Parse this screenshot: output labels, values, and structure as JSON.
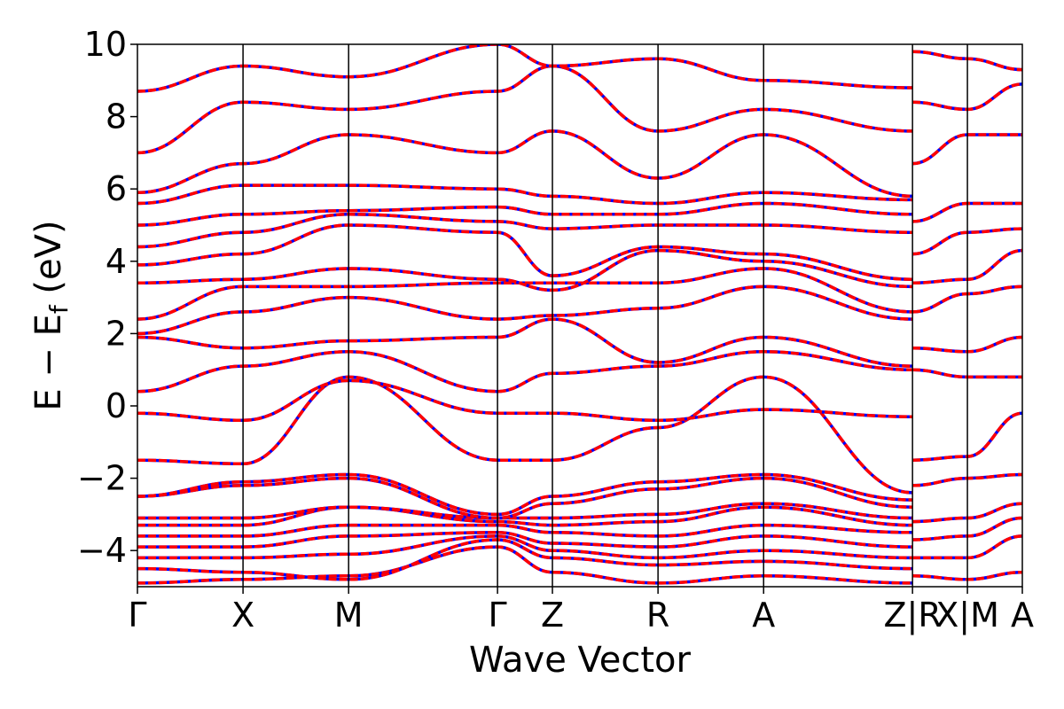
{
  "chart_data": {
    "type": "line",
    "xlabel": "Wave Vector",
    "ylabel": "E − E",
    "ylabel_sub": "f",
    "ylabel_unit": " (eV)",
    "ylim": [
      -5,
      10
    ],
    "yticks": [
      {
        "value": -4,
        "label": "−4"
      },
      {
        "value": -2,
        "label": "−2"
      },
      {
        "value": 0,
        "label": "0"
      },
      {
        "value": 2,
        "label": "2"
      },
      {
        "value": 4,
        "label": "4"
      },
      {
        "value": 6,
        "label": "6"
      },
      {
        "value": 8,
        "label": "8"
      },
      {
        "value": 10,
        "label": "10"
      }
    ],
    "kpath": [
      {
        "label": "Γ",
        "position": 0.0
      },
      {
        "label": "X",
        "position": 1.0
      },
      {
        "label": "M",
        "position": 2.0
      },
      {
        "label": "Γ",
        "position": 3.41
      },
      {
        "label": "Z",
        "position": 3.93
      },
      {
        "label": "R",
        "position": 4.93
      },
      {
        "label": "A",
        "position": 5.93
      },
      {
        "label": "Z|R",
        "position": 7.34
      },
      {
        "label": "X|M",
        "position": 7.86
      },
      {
        "label": "A",
        "position": 8.38
      }
    ],
    "grid": false,
    "legend": "none",
    "series_colors": {
      "overlay_line": "#ff0000",
      "base_line": "#0000ff"
    },
    "bands": [
      {
        "k": [
          0,
          1,
          2,
          3.41,
          3.93,
          4.93,
          5.93,
          7.34
        ],
        "E": [
          -4.9,
          -4.8,
          -4.7,
          -3.9,
          -4.6,
          -4.9,
          -4.7,
          -4.9
        ]
      },
      {
        "k": [
          0,
          1,
          2,
          3.41,
          3.93,
          4.93,
          5.93,
          7.34
        ],
        "E": [
          -4.5,
          -4.6,
          -4.8,
          -3.7,
          -4.2,
          -4.4,
          -4.3,
          -4.5
        ]
      },
      {
        "k": [
          0,
          1,
          2,
          3.41,
          3.93,
          4.93,
          5.93,
          7.34
        ],
        "E": [
          -4.2,
          -4.2,
          -4.1,
          -3.6,
          -4.0,
          -4.2,
          -4.0,
          -4.2
        ]
      },
      {
        "k": [
          0,
          1,
          2,
          3.41,
          3.93,
          4.93,
          5.93,
          7.34
        ],
        "E": [
          -3.9,
          -3.9,
          -3.6,
          -3.5,
          -3.8,
          -3.9,
          -3.6,
          -3.9
        ]
      },
      {
        "k": [
          0,
          1,
          2,
          3.41,
          3.93,
          4.93,
          5.93,
          7.34
        ],
        "E": [
          -3.6,
          -3.6,
          -3.3,
          -3.3,
          -3.5,
          -3.6,
          -3.3,
          -3.5
        ]
      },
      {
        "k": [
          0,
          1,
          2,
          3.41,
          3.93,
          4.93,
          5.93,
          7.34
        ],
        "E": [
          -3.3,
          -3.3,
          -2.8,
          -3.2,
          -3.3,
          -3.2,
          -2.8,
          -3.3
        ]
      },
      {
        "k": [
          0,
          1,
          2,
          3.41,
          3.93,
          4.93,
          5.93,
          7.34
        ],
        "E": [
          -3.1,
          -3.1,
          -2.8,
          -3.1,
          -3.1,
          -3.0,
          -2.7,
          -3.1
        ]
      },
      {
        "k": [
          0,
          1,
          2,
          3.41,
          3.93,
          4.93,
          5.93,
          7.34
        ],
        "E": [
          -2.5,
          -2.2,
          -2.0,
          -3.1,
          -2.7,
          -2.3,
          -2.0,
          -2.8
        ]
      },
      {
        "k": [
          0,
          1,
          2,
          3.41,
          3.93,
          4.93,
          5.93,
          7.34
        ],
        "E": [
          -2.5,
          -2.1,
          -1.9,
          -3.0,
          -2.5,
          -2.1,
          -1.9,
          -2.6
        ]
      },
      {
        "k": [
          0,
          1,
          2,
          3.41,
          3.93,
          4.93,
          5.93,
          7.34
        ],
        "E": [
          -1.5,
          -1.6,
          0.8,
          -1.5,
          -1.5,
          -0.6,
          0.8,
          -2.4
        ]
      },
      {
        "k": [
          0,
          1,
          2,
          3.41,
          3.93,
          4.93,
          5.93,
          7.34
        ],
        "E": [
          -0.2,
          -0.4,
          0.7,
          -0.2,
          -0.2,
          -0.4,
          -0.1,
          -0.3
        ]
      },
      {
        "k": [
          0,
          1,
          2,
          3.41,
          3.93,
          4.93,
          5.93,
          7.34
        ],
        "E": [
          0.4,
          1.1,
          1.5,
          0.4,
          0.9,
          1.1,
          1.5,
          1.0
        ]
      },
      {
        "k": [
          0,
          1,
          2,
          3.41,
          3.93,
          4.93,
          5.93,
          7.34
        ],
        "E": [
          1.9,
          1.6,
          1.8,
          1.9,
          2.4,
          1.2,
          1.9,
          1.1
        ]
      },
      {
        "k": [
          0,
          1,
          2,
          3.41,
          3.93,
          4.93,
          5.93,
          7.34
        ],
        "E": [
          2.0,
          2.6,
          3.0,
          2.4,
          2.5,
          2.7,
          3.3,
          2.4
        ]
      },
      {
        "k": [
          0,
          1,
          2,
          3.41,
          3.93,
          4.93,
          5.93,
          7.34
        ],
        "E": [
          2.4,
          3.3,
          3.3,
          3.4,
          3.4,
          3.4,
          3.8,
          2.6
        ]
      },
      {
        "k": [
          0,
          1,
          2,
          3.41,
          3.93,
          4.93,
          5.93,
          7.34
        ],
        "E": [
          3.4,
          3.5,
          3.8,
          3.5,
          3.2,
          4.3,
          4.0,
          3.3
        ]
      },
      {
        "k": [
          0,
          1,
          2,
          3.41,
          3.93,
          4.93,
          5.93,
          7.34
        ],
        "E": [
          3.9,
          4.2,
          5.0,
          4.8,
          3.6,
          4.4,
          4.2,
          3.5
        ]
      },
      {
        "k": [
          0,
          1,
          2,
          3.41,
          3.93,
          4.93,
          5.93,
          7.34
        ],
        "E": [
          4.4,
          4.8,
          5.3,
          5.1,
          4.9,
          5.0,
          5.0,
          4.8
        ]
      },
      {
        "k": [
          0,
          1,
          2,
          3.41,
          3.93,
          4.93,
          5.93,
          7.34
        ],
        "E": [
          5.0,
          5.3,
          5.4,
          5.5,
          5.3,
          5.3,
          5.6,
          5.3
        ]
      },
      {
        "k": [
          0,
          1,
          2,
          3.41,
          3.93,
          4.93,
          5.93,
          7.34
        ],
        "E": [
          5.6,
          6.1,
          6.1,
          6.0,
          5.8,
          5.6,
          5.9,
          5.7
        ]
      },
      {
        "k": [
          0,
          1,
          2,
          3.41,
          3.93,
          4.93,
          5.93,
          7.34
        ],
        "E": [
          5.9,
          6.7,
          7.5,
          7.0,
          7.6,
          6.3,
          7.5,
          5.8
        ]
      },
      {
        "k": [
          0,
          1,
          2,
          3.41,
          3.93,
          4.93,
          5.93,
          7.34
        ],
        "E": [
          7.0,
          8.4,
          8.2,
          8.7,
          9.4,
          7.6,
          8.2,
          7.6
        ]
      },
      {
        "k": [
          0,
          1,
          2,
          3.41,
          3.93,
          4.93,
          5.93,
          7.34
        ],
        "E": [
          8.7,
          9.4,
          9.1,
          10.0,
          9.4,
          9.6,
          9.0,
          8.8
        ]
      },
      {
        "k": [
          7.34,
          7.86,
          8.38
        ],
        "E": [
          -4.7,
          -4.8,
          -4.6
        ]
      },
      {
        "k": [
          7.34,
          7.86,
          8.38
        ],
        "E": [
          -4.2,
          -4.2,
          -3.6
        ]
      },
      {
        "k": [
          7.34,
          7.86,
          8.38
        ],
        "E": [
          -3.7,
          -3.6,
          -3.1
        ]
      },
      {
        "k": [
          7.34,
          7.86,
          8.38
        ],
        "E": [
          -3.2,
          -3.1,
          -2.7
        ]
      },
      {
        "k": [
          7.34,
          7.86,
          8.38
        ],
        "E": [
          -2.2,
          -2.0,
          -1.9
        ]
      },
      {
        "k": [
          7.34,
          7.86,
          8.38
        ],
        "E": [
          -1.5,
          -1.4,
          -0.2
        ]
      },
      {
        "k": [
          7.34,
          7.86,
          8.38
        ],
        "E": [
          1.0,
          0.8,
          0.8
        ]
      },
      {
        "k": [
          7.34,
          7.86,
          8.38
        ],
        "E": [
          1.6,
          1.5,
          1.9
        ]
      },
      {
        "k": [
          7.34,
          7.86,
          8.38
        ],
        "E": [
          2.6,
          3.1,
          3.3
        ]
      },
      {
        "k": [
          7.34,
          7.86,
          8.38
        ],
        "E": [
          3.4,
          3.5,
          4.3
        ]
      },
      {
        "k": [
          7.34,
          7.86,
          8.38
        ],
        "E": [
          4.2,
          4.8,
          4.9
        ]
      },
      {
        "k": [
          7.34,
          7.86,
          8.38
        ],
        "E": [
          5.1,
          5.6,
          5.6
        ]
      },
      {
        "k": [
          7.34,
          7.86,
          8.38
        ],
        "E": [
          6.7,
          7.5,
          7.5
        ]
      },
      {
        "k": [
          7.34,
          7.86,
          8.38
        ],
        "E": [
          8.4,
          8.2,
          8.9
        ]
      },
      {
        "k": [
          7.34,
          7.86,
          8.38
        ],
        "E": [
          9.8,
          9.6,
          9.3
        ]
      }
    ]
  }
}
